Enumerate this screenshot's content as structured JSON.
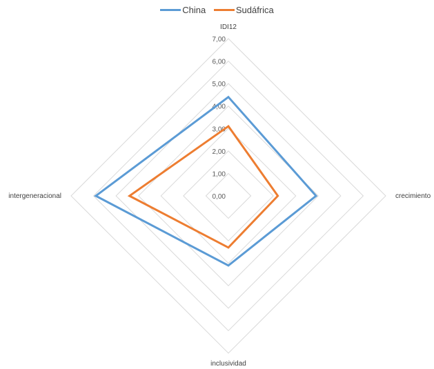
{
  "chart_data": {
    "type": "radar",
    "axes": [
      "IDI12",
      "crecimiento",
      "inclusividad",
      "intergeneracional"
    ],
    "rmin": 0,
    "rmax": 7,
    "step": 1,
    "tick_labels": [
      "0,00",
      "1,00",
      "2,00",
      "3,00",
      "4,00",
      "5,00",
      "6,00",
      "7,00"
    ],
    "grid": true,
    "legend_position": "top",
    "series": [
      {
        "name": "China",
        "color": "#5B9BD5",
        "values": [
          4.4,
          3.9,
          3.1,
          5.9
        ]
      },
      {
        "name": "Sudáfrica",
        "color": "#ED7D31",
        "values": [
          3.1,
          2.2,
          2.3,
          4.4
        ]
      }
    ]
  }
}
